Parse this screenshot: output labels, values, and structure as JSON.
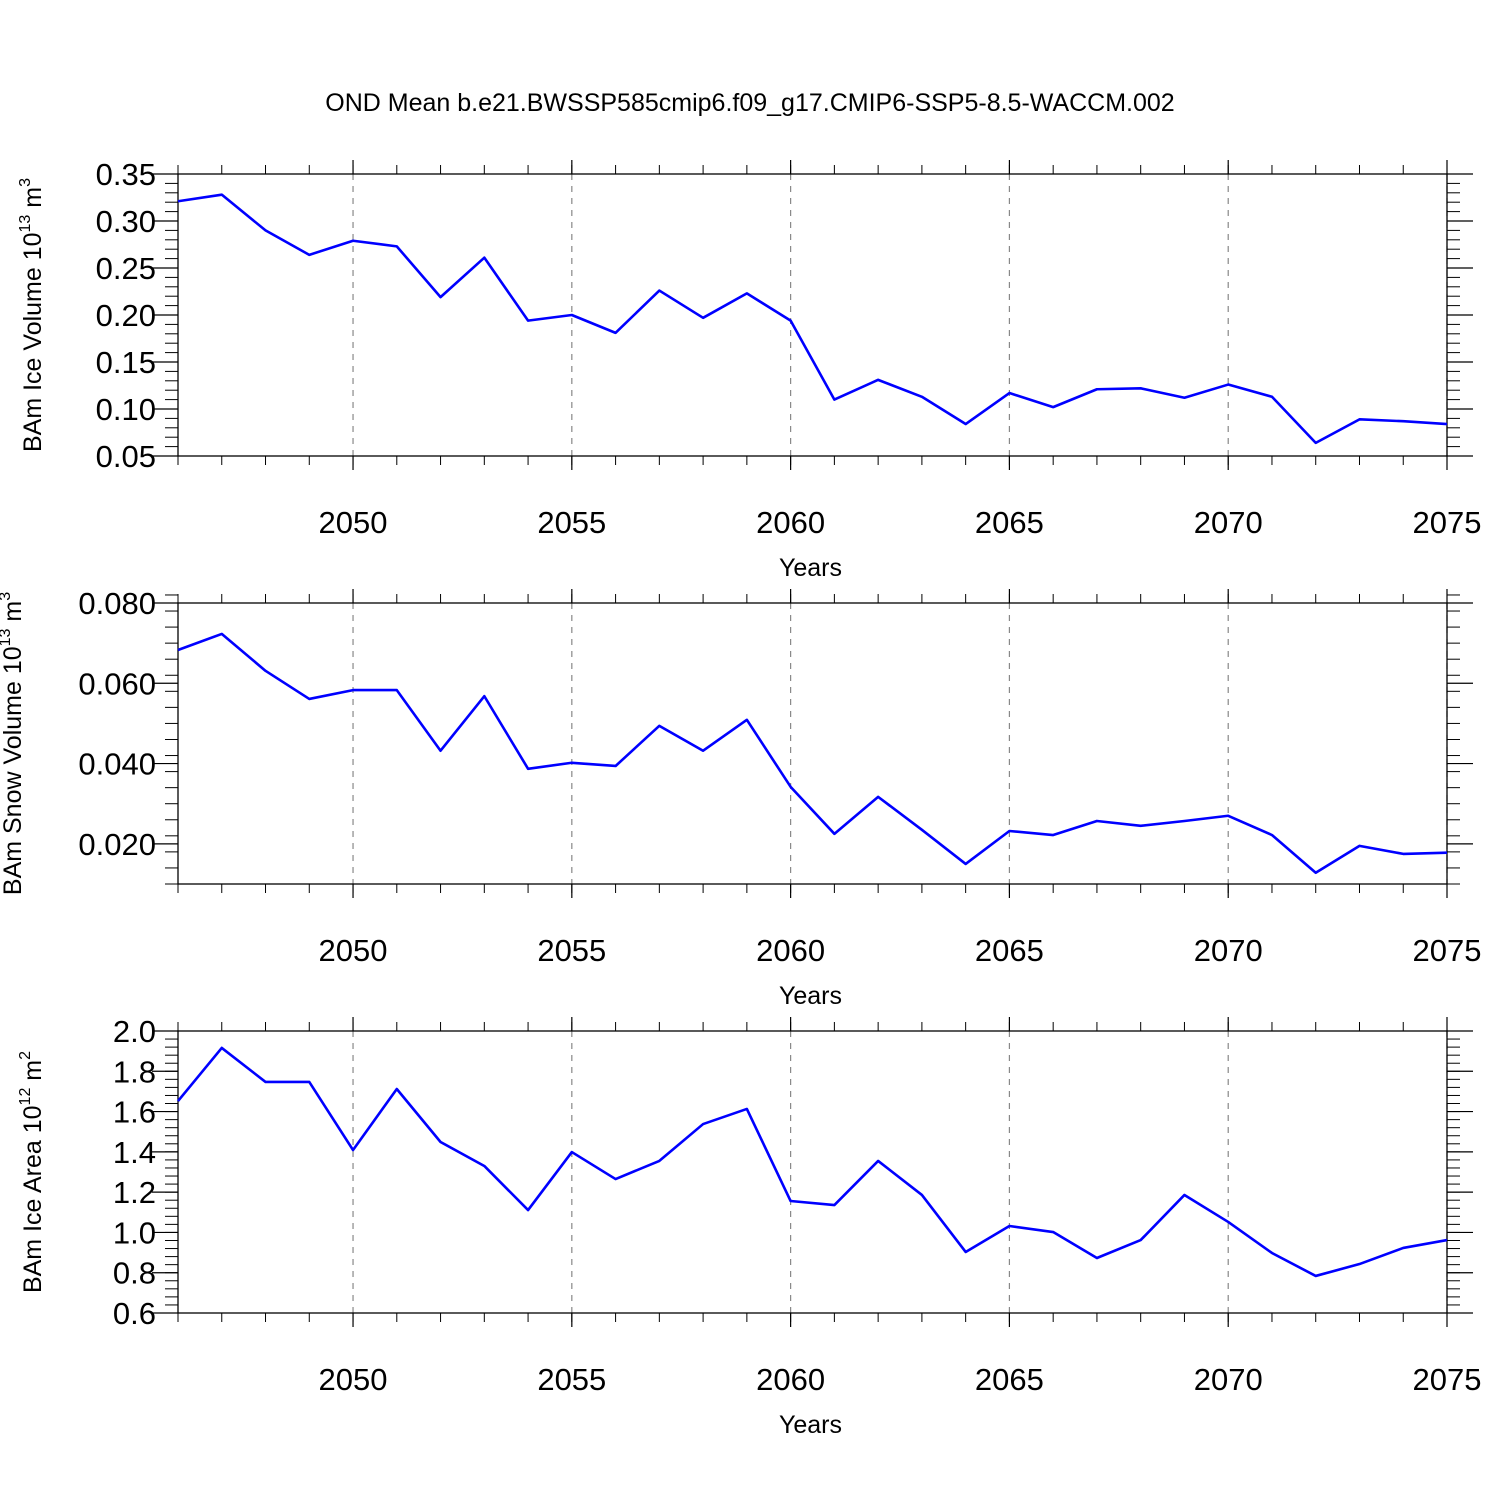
{
  "title": "OND Mean b.e21.BWSSP585cmip6.f09_g17.CMIP6-SSP5-8.5-WACCM.002",
  "chart_data": [
    {
      "type": "line",
      "y_label": "BAm Ice Volume 10",
      "y_label_exponent": "13",
      "y_unit": " m",
      "y_unit_exponent": "3",
      "x_label": "Years",
      "x": [
        2046,
        2047,
        2048,
        2049,
        2050,
        2051,
        2052,
        2053,
        2054,
        2055,
        2056,
        2057,
        2058,
        2059,
        2060,
        2061,
        2062,
        2063,
        2064,
        2065,
        2066,
        2067,
        2068,
        2069,
        2070,
        2071,
        2072,
        2073,
        2074,
        2075
      ],
      "series": [
        {
          "color": "#0000ff",
          "values": [
            0.321,
            0.328,
            0.29,
            0.264,
            0.279,
            0.273,
            0.219,
            0.261,
            0.194,
            0.2,
            0.181,
            0.226,
            0.197,
            0.223,
            0.194,
            0.11,
            0.131,
            0.113,
            0.084,
            0.117,
            0.102,
            0.121,
            0.122,
            0.112,
            0.126,
            0.113,
            0.064,
            0.089,
            0.087,
            0.084
          ]
        }
      ],
      "xlim": [
        2046,
        2075
      ],
      "xticks": [
        2050,
        2055,
        2060,
        2065,
        2070,
        2075
      ],
      "xminor_step": 1,
      "ylim": [
        0.05,
        0.35
      ],
      "yticks": [
        0.05,
        {
          "value": 0.1,
          "label": "0.10"
        },
        0.15,
        {
          "value": 0.2,
          "label": "0.20"
        },
        0.25,
        {
          "value": 0.3,
          "label": "0.30"
        },
        0.35
      ],
      "yminor_step": 0.01,
      "grid": "x-dashed"
    },
    {
      "type": "line",
      "y_label": "BAm Snow Volume 10",
      "y_label_exponent": "13",
      "y_unit": " m",
      "y_unit_exponent": "3",
      "x_label": "Years",
      "x": [
        2046,
        2047,
        2048,
        2049,
        2050,
        2051,
        2052,
        2053,
        2054,
        2055,
        2056,
        2057,
        2058,
        2059,
        2060,
        2061,
        2062,
        2063,
        2064,
        2065,
        2066,
        2067,
        2068,
        2069,
        2070,
        2071,
        2072,
        2073,
        2074,
        2075
      ],
      "series": [
        {
          "color": "#0000ff",
          "values": [
            0.0683,
            0.0723,
            0.0631,
            0.0561,
            0.0583,
            0.0583,
            0.0432,
            0.0568,
            0.0387,
            0.0402,
            0.0394,
            0.0494,
            0.0432,
            0.0509,
            0.0342,
            0.0225,
            0.0317,
            0.0235,
            0.015,
            0.0232,
            0.0222,
            0.0257,
            0.0245,
            0.0257,
            0.027,
            0.0222,
            0.0128,
            0.0195,
            0.0175,
            0.0178
          ]
        }
      ],
      "xlim": [
        2046,
        2075
      ],
      "xticks": [
        2050,
        2055,
        2060,
        2065,
        2070,
        2075
      ],
      "xminor_step": 1,
      "ylim": [
        0.01,
        0.08
      ],
      "yticks": [
        {
          "value": 0.02,
          "label": "0.020"
        },
        {
          "value": 0.04,
          "label": "0.040"
        },
        {
          "value": 0.06,
          "label": "0.060"
        },
        {
          "value": 0.08,
          "label": "0.080"
        }
      ],
      "yminor_step": 0.004,
      "grid": "x-dashed"
    },
    {
      "type": "line",
      "y_label": "BAm Ice Area 10",
      "y_label_exponent": "12",
      "y_unit": " m",
      "y_unit_exponent": "2",
      "x_label": "Years",
      "x": [
        2046,
        2047,
        2048,
        2049,
        2050,
        2051,
        2052,
        2053,
        2054,
        2055,
        2056,
        2057,
        2058,
        2059,
        2060,
        2061,
        2062,
        2063,
        2064,
        2065,
        2066,
        2067,
        2068,
        2069,
        2070,
        2071,
        2072,
        2073,
        2074,
        2075
      ],
      "series": [
        {
          "color": "#0000ff",
          "values": [
            1.652,
            1.916,
            1.747,
            1.747,
            1.409,
            1.712,
            1.449,
            1.33,
            1.111,
            1.399,
            1.265,
            1.355,
            1.538,
            1.613,
            1.156,
            1.136,
            1.355,
            1.186,
            0.903,
            1.032,
            1.002,
            0.873,
            0.962,
            1.186,
            1.052,
            0.898,
            0.784,
            0.843,
            0.923,
            0.962
          ]
        }
      ],
      "xlim": [
        2046,
        2075
      ],
      "xticks": [
        2050,
        2055,
        2060,
        2065,
        2070,
        2075
      ],
      "xminor_step": 1,
      "ylim": [
        0.6,
        2.0
      ],
      "yticks": [
        0.6,
        0.8,
        {
          "value": 1.0,
          "label": "1.0"
        },
        1.2,
        1.4,
        1.6,
        1.8,
        {
          "value": 2.0,
          "label": "2.0"
        }
      ],
      "yminor_step": 0.04,
      "grid": "x-dashed"
    }
  ]
}
